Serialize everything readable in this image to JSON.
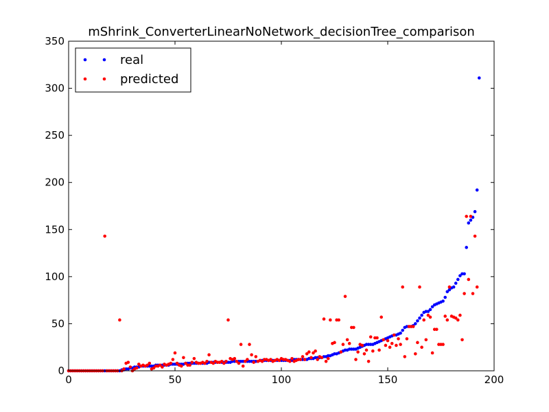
{
  "chart_data": {
    "type": "scatter",
    "title": "mShrink_ConverterLinearNoNetwork_decisionTree_comparison",
    "xlabel": "",
    "ylabel": "",
    "xlim": [
      0,
      200
    ],
    "ylim": [
      0,
      350
    ],
    "x_ticks": [
      0,
      50,
      100,
      150,
      200
    ],
    "y_ticks": [
      0,
      50,
      100,
      150,
      200,
      250,
      300,
      350
    ],
    "grid": false,
    "legend_position": "top-left",
    "series": [
      {
        "name": "real",
        "color": "#0000ff",
        "values": [
          0,
          0,
          0,
          0,
          0,
          0,
          0,
          0,
          0,
          0,
          0,
          0,
          0,
          0,
          0,
          0,
          0,
          0,
          0,
          0,
          0,
          0,
          0,
          0,
          0,
          1,
          1,
          2,
          2,
          3,
          3,
          4,
          4,
          4,
          5,
          5,
          5,
          5,
          5,
          5,
          5,
          6,
          6,
          6,
          6,
          6,
          6,
          6,
          7,
          7,
          7,
          7,
          7,
          7,
          7,
          8,
          8,
          8,
          8,
          8,
          8,
          8,
          8,
          8,
          8,
          8,
          9,
          9,
          9,
          9,
          9,
          9,
          9,
          9,
          9,
          9,
          9,
          10,
          10,
          10,
          10,
          10,
          10,
          10,
          10,
          10,
          10,
          10,
          10,
          10,
          11,
          11,
          11,
          11,
          11,
          11,
          11,
          11,
          11,
          11,
          11,
          11,
          11,
          11,
          11,
          11,
          12,
          12,
          12,
          12,
          12,
          12,
          12,
          13,
          13,
          13,
          14,
          14,
          14,
          14,
          15,
          15,
          16,
          16,
          17,
          18,
          18,
          19,
          20,
          21,
          22,
          22,
          23,
          23,
          23,
          23,
          24,
          25,
          26,
          27,
          28,
          28,
          28,
          28,
          29,
          30,
          31,
          32,
          33,
          34,
          35,
          36,
          37,
          38,
          38,
          39,
          40,
          43,
          46,
          47,
          47,
          47,
          48,
          50,
          53,
          56,
          59,
          62,
          63,
          63,
          65,
          68,
          70,
          71,
          72,
          73,
          74,
          78,
          84,
          86,
          88,
          89,
          93,
          97,
          101,
          103,
          103,
          131,
          157,
          160,
          163,
          169,
          192,
          311
        ]
      },
      {
        "name": "predicted",
        "color": "#ff0000",
        "values": [
          0,
          0,
          0,
          0,
          0,
          0,
          0,
          0,
          0,
          0,
          0,
          0,
          0,
          0,
          0,
          0,
          0,
          143,
          0,
          0,
          0,
          0,
          0,
          0,
          54,
          0,
          2,
          8,
          9,
          4,
          0,
          2,
          3,
          7,
          5,
          6,
          5,
          6,
          8,
          2,
          3,
          5,
          5,
          6,
          4,
          7,
          6,
          7,
          8,
          12,
          19,
          8,
          6,
          5,
          14,
          8,
          6,
          6,
          9,
          13,
          9,
          8,
          8,
          9,
          8,
          10,
          17,
          9,
          8,
          10,
          9,
          9,
          10,
          8,
          10,
          54,
          13,
          12,
          13,
          10,
          8,
          28,
          5,
          10,
          12,
          28,
          17,
          9,
          15,
          10,
          11,
          10,
          12,
          12,
          11,
          12,
          10,
          11,
          12,
          11,
          13,
          12,
          12,
          11,
          10,
          13,
          10,
          11,
          12,
          12,
          15,
          12,
          18,
          20,
          14,
          19,
          21,
          12,
          15,
          14,
          55,
          10,
          13,
          54,
          29,
          30,
          54,
          54,
          20,
          28,
          79,
          33,
          29,
          46,
          46,
          12,
          20,
          28,
          27,
          18,
          22,
          10,
          36,
          21,
          35,
          35,
          22,
          57,
          33,
          27,
          32,
          25,
          29,
          38,
          27,
          34,
          28,
          89,
          15,
          34,
          47,
          47,
          47,
          18,
          30,
          89,
          25,
          54,
          33,
          59,
          57,
          19,
          44,
          44,
          28,
          28,
          28,
          58,
          54,
          89,
          58,
          57,
          56,
          54,
          59,
          33,
          82,
          164,
          97,
          164,
          82,
          143,
          89
        ]
      }
    ]
  }
}
